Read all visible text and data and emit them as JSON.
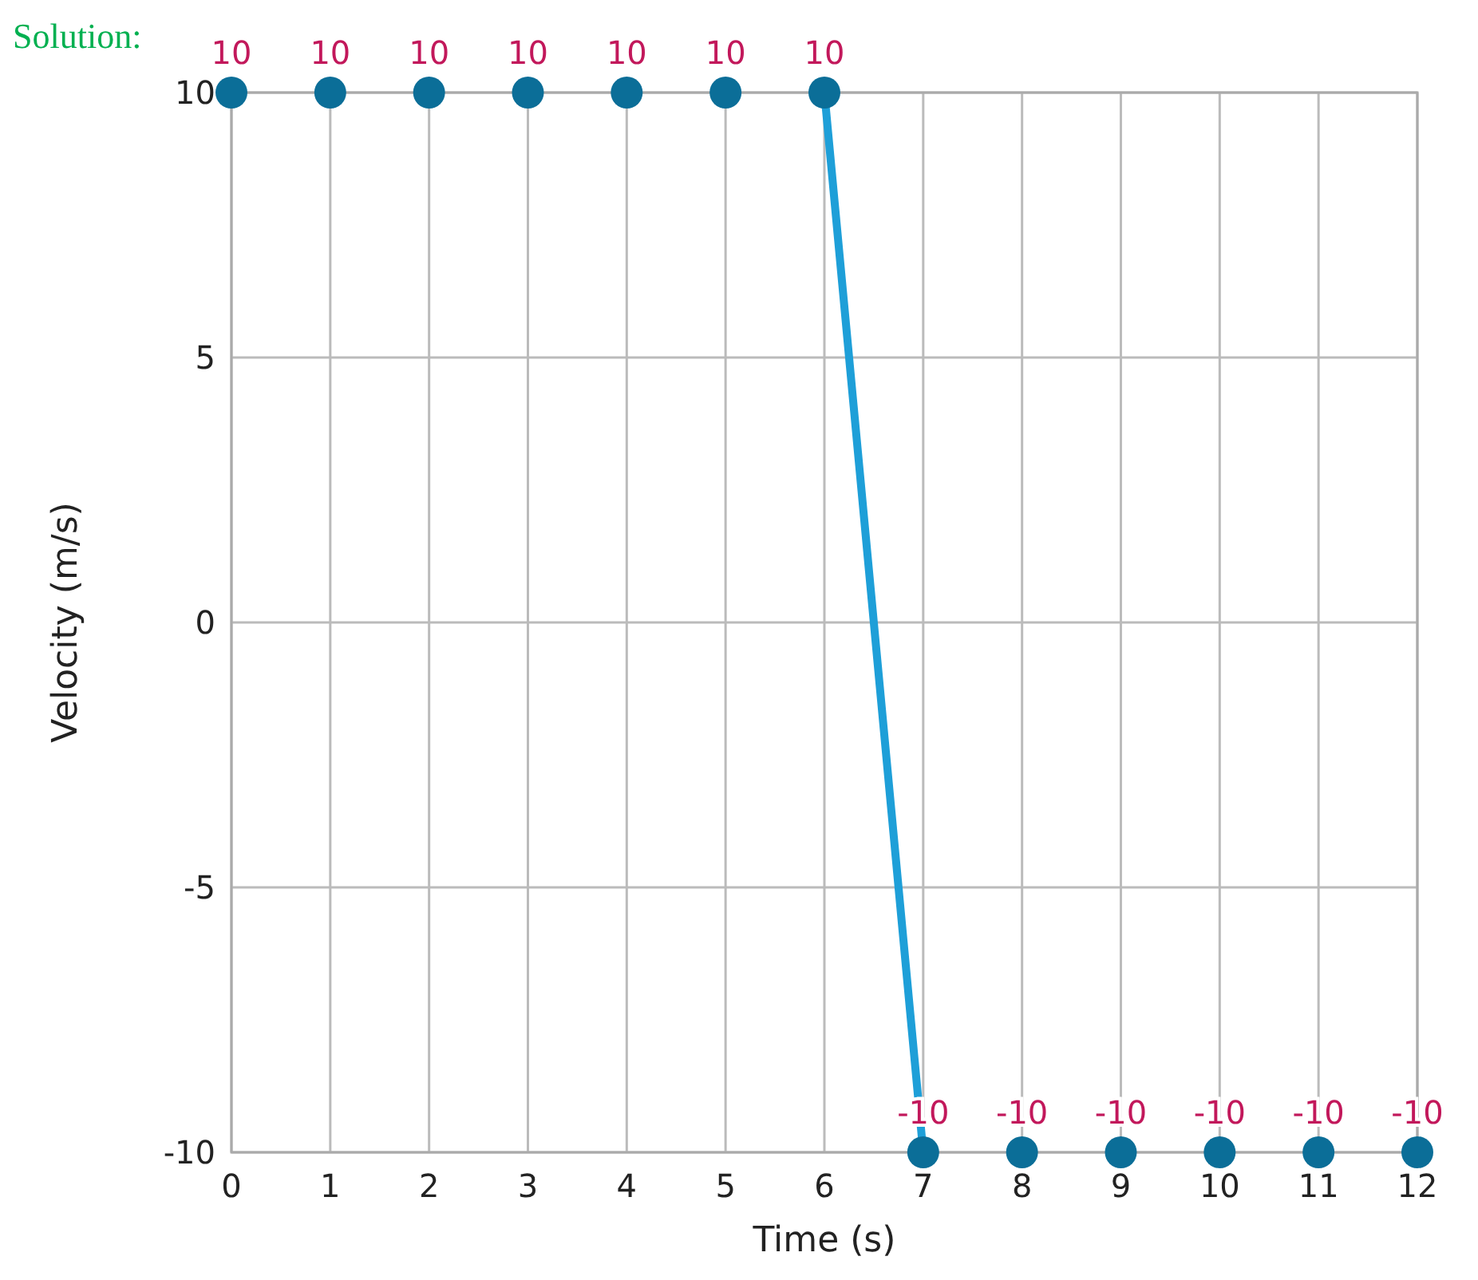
{
  "chart_data": {
    "type": "scatter",
    "title": "Solution:",
    "xlabel": "Time (s)",
    "ylabel": "Velocity (m/s)",
    "xlim": [
      0,
      12
    ],
    "ylim": [
      -10,
      10
    ],
    "xticks": [
      0,
      1,
      2,
      3,
      4,
      5,
      6,
      7,
      8,
      9,
      10,
      11,
      12
    ],
    "yticks": [
      -10,
      -5,
      0,
      5,
      10
    ],
    "grid": true,
    "series": [
      {
        "type": "line",
        "color": "#1e9fd8",
        "x": [
          6,
          7
        ],
        "values": [
          10,
          -10
        ],
        "marker": "none",
        "line_style": "solid"
      },
      {
        "color": "#0b6e98",
        "marker": "circle",
        "x": [
          0,
          1,
          2,
          3,
          4,
          5,
          6,
          7,
          8,
          9,
          10,
          11,
          12
        ],
        "values": [
          10,
          10,
          10,
          10,
          10,
          10,
          10,
          -10,
          -10,
          -10,
          -10,
          -10,
          -10
        ],
        "value_labels": [
          "10",
          "10",
          "10",
          "10",
          "10",
          "10",
          "10",
          "-10",
          "-10",
          "-10",
          "-10",
          "-10",
          "-10"
        ]
      }
    ]
  }
}
